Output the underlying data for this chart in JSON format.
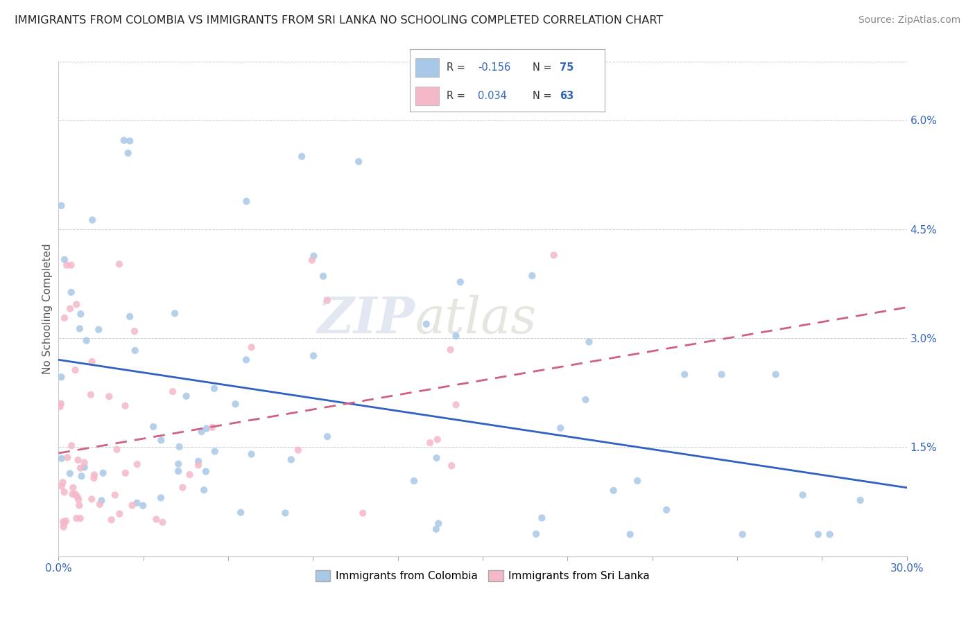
{
  "title": "IMMIGRANTS FROM COLOMBIA VS IMMIGRANTS FROM SRI LANKA NO SCHOOLING COMPLETED CORRELATION CHART",
  "source": "Source: ZipAtlas.com",
  "ylabel": "No Schooling Completed",
  "ytick_vals": [
    0.015,
    0.03,
    0.045,
    0.06
  ],
  "ytick_labels": [
    "1.5%",
    "3.0%",
    "4.5%",
    "6.0%"
  ],
  "xlim": [
    0.0,
    0.3
  ],
  "ylim": [
    0.0,
    0.068
  ],
  "legend_r_colombia": "-0.156",
  "legend_n_colombia": "75",
  "legend_r_srilanka": "0.034",
  "legend_n_srilanka": "63",
  "color_colombia": "#a8c8e8",
  "color_srilanka": "#f4b8c8",
  "trendline_colombia": "#3060c0",
  "trendline_srilanka": "#d06080",
  "watermark_zip": "ZIP",
  "watermark_atlas": "atlas",
  "col_seed": 12345,
  "slk_seed": 67890,
  "title_fontsize": 11.5,
  "source_fontsize": 10,
  "tick_label_fontsize": 11,
  "ylabel_fontsize": 11
}
